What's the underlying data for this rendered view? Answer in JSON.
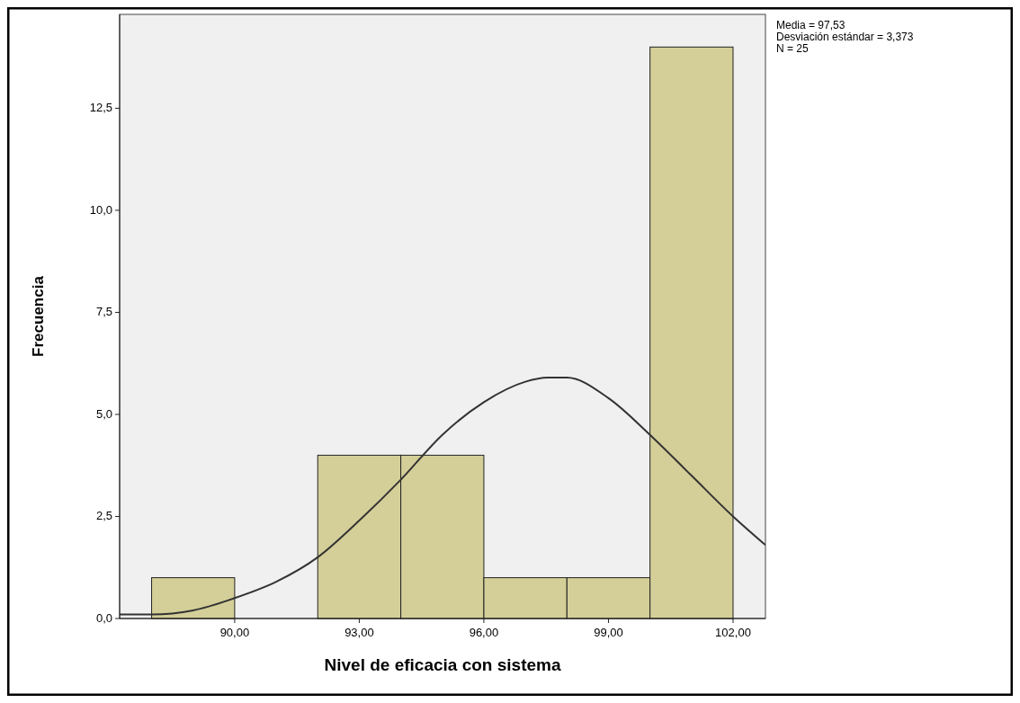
{
  "chart_data": {
    "type": "histogram",
    "xlabel": "Nivel de eficacia con sistema",
    "ylabel": "Frecuencia",
    "bins": [
      88,
      90,
      92,
      94,
      96,
      98,
      100,
      102
    ],
    "values": [
      1,
      0,
      4,
      4,
      1,
      1,
      14
    ],
    "color": "#d4cf98",
    "series": [
      {
        "type": "line",
        "color": "#333333",
        "x": [
          87.23,
          88,
          89,
          90,
          91,
          92,
          93,
          94,
          95,
          96,
          97,
          97.53,
          98,
          99,
          100,
          101,
          102,
          102.78
        ],
        "values": [
          0.1,
          0.1,
          0.2,
          0.5,
          0.9,
          1.5,
          2.4,
          3.4,
          4.5,
          5.3,
          5.8,
          5.9,
          5.9,
          5.4,
          4.5,
          3.5,
          2.5,
          1.8
        ]
      }
    ],
    "xlim": [
      87.23,
      102.78
    ],
    "ylim": [
      0,
      14.8
    ],
    "xticks": [
      {
        "value": 90,
        "label": "90,00"
      },
      {
        "value": 93,
        "label": "93,00"
      },
      {
        "value": 96,
        "label": "96,00"
      },
      {
        "value": 99,
        "label": "99,00"
      },
      {
        "value": 102,
        "label": "102,00"
      }
    ],
    "yticks": [
      {
        "value": 0,
        "label": "0,0"
      },
      {
        "value": 2.5,
        "label": "2,5"
      },
      {
        "value": 5,
        "label": "5,0"
      },
      {
        "value": 7.5,
        "label": "7,5"
      },
      {
        "value": 10,
        "label": "10,0"
      },
      {
        "value": 12.5,
        "label": "12,5"
      }
    ],
    "grid": false,
    "marker": "none",
    "line_style": "solid",
    "annotations": [
      "Media = 97,53",
      "Desviación estándar = 3,373",
      "N = 25"
    ]
  }
}
